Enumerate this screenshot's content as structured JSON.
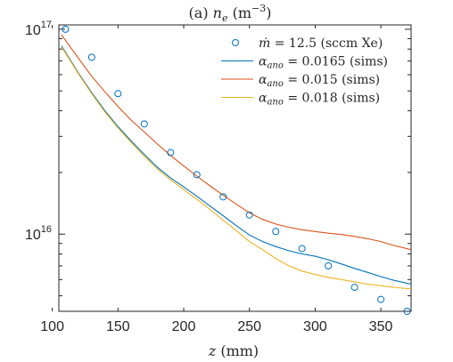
{
  "chart_data": {
    "type": "line",
    "title": "(a) n_e (m⁻³)",
    "title_parts": {
      "prefix": "(a) ",
      "var": "n",
      "sub": "e",
      "unit_open": " (m",
      "unit_exp": "−3",
      "unit_close": ")"
    },
    "xlabel": "z (mm)",
    "xlabel_parts": {
      "var": "z",
      "unit": " (mm)"
    },
    "ylabel": "",
    "x_ticks": [
      "100",
      "150",
      "200",
      "250",
      "300",
      "350"
    ],
    "x_tick_values": [
      100,
      150,
      200,
      250,
      300,
      350
    ],
    "y_ticks": [
      {
        "value": 1e+16,
        "base": "10",
        "exp": "16"
      },
      {
        "value": 1e+17,
        "base": "10",
        "exp": "17"
      }
    ],
    "xlim": [
      105,
      373
    ],
    "ylim": [
      4200000000000000.0,
      1.05e+17
    ],
    "yscale": "log",
    "grid": false,
    "legend_placement": "top-right",
    "series": [
      {
        "name": "ṁ = 12.5 (sccm Xe)",
        "legend_parts": {
          "var": "ṁ",
          "rest": " = 12.5 (sccm Xe)"
        },
        "kind": "markers",
        "color": "#0072BD",
        "x": [
          110,
          130,
          150,
          170,
          190,
          210,
          230,
          250,
          270,
          290,
          310,
          330,
          350,
          370
        ],
        "y": [
          1e+17,
          7.3e+16,
          4.85e+16,
          3.45e+16,
          2.5e+16,
          1.95e+16,
          1.52e+16,
          1.24e+16,
          1.03e+16,
          8500000000000000.0,
          7000000000000000.0,
          5500000000000000.0,
          4800000000000000.0,
          4200000000000000.0
        ]
      },
      {
        "name": "α_ano = 0.0165 (sims)",
        "legend_parts": {
          "var": "α",
          "sub": "ano",
          "rest": " = 0.0165 (sims)"
        },
        "kind": "line",
        "color": "#0072BD",
        "x": [
          107,
          120,
          130,
          140,
          150,
          160,
          170,
          180,
          190,
          200,
          210,
          220,
          230,
          240,
          250,
          260,
          270,
          280,
          290,
          300,
          310,
          320,
          330,
          340,
          350,
          360,
          373
        ],
        "y": [
          8.3e+16,
          6.1e+16,
          4.9e+16,
          4e+16,
          3.35e+16,
          2.85e+16,
          2.45e+16,
          2.12e+16,
          1.88e+16,
          1.7e+16,
          1.53e+16,
          1.37e+16,
          1.23e+16,
          1.1e+16,
          9900000000000000.0,
          9200000000000000.0,
          8700000000000000.0,
          8300000000000000.0,
          8000000000000000.0,
          7800000000000000.0,
          7500000000000000.0,
          7150000000000000.0,
          6800000000000000.0,
          6500000000000000.0,
          6200000000000000.0,
          5950000000000000.0,
          5700000000000000.0
        ]
      },
      {
        "name": "α_ano = 0.015 (sims)",
        "legend_parts": {
          "var": "α",
          "sub": "ano",
          "rest": " = 0.015 (sims)"
        },
        "kind": "line",
        "color": "#D95319",
        "x": [
          107,
          120,
          130,
          140,
          150,
          160,
          170,
          180,
          190,
          200,
          210,
          220,
          230,
          240,
          250,
          260,
          270,
          280,
          290,
          300,
          310,
          320,
          330,
          340,
          350,
          360,
          373
        ],
        "y": [
          9.4e+16,
          7.2e+16,
          5.9e+16,
          4.95e+16,
          4.2e+16,
          3.6e+16,
          3.15e+16,
          2.75e+16,
          2.42e+16,
          2.15e+16,
          1.92e+16,
          1.72e+16,
          1.55e+16,
          1.4e+16,
          1.27e+16,
          1.18e+16,
          1.12e+16,
          1.08e+16,
          1.05e+16,
          1.03e+16,
          1.01e+16,
          9950000000000000.0,
          9750000000000000.0,
          9500000000000000.0,
          9200000000000000.0,
          8800000000000000.0,
          8400000000000000.0
        ]
      },
      {
        "name": "α_ano = 0.018 (sims)",
        "legend_parts": {
          "var": "α",
          "sub": "ano",
          "rest": " = 0.018 (sims)"
        },
        "kind": "line",
        "color": "#EDB120",
        "x": [
          107,
          120,
          130,
          140,
          150,
          160,
          170,
          180,
          190,
          200,
          210,
          220,
          230,
          240,
          250,
          260,
          270,
          280,
          290,
          300,
          310,
          320,
          330,
          340,
          350,
          360,
          373
        ],
        "y": [
          8.2e+16,
          6.05e+16,
          4.85e+16,
          3.95e+16,
          3.3e+16,
          2.8e+16,
          2.4e+16,
          2.08e+16,
          1.84e+16,
          1.65e+16,
          1.48e+16,
          1.32e+16,
          1.17e+16,
          1.04e+16,
          9200000000000000.0,
          8400000000000000.0,
          7600000000000000.0,
          7000000000000000.0,
          6600000000000000.0,
          6350000000000000.0,
          6150000000000000.0,
          6000000000000000.0,
          5850000000000000.0,
          5700000000000000.0,
          5600000000000000.0,
          5500000000000000.0,
          5400000000000000.0
        ]
      }
    ]
  }
}
